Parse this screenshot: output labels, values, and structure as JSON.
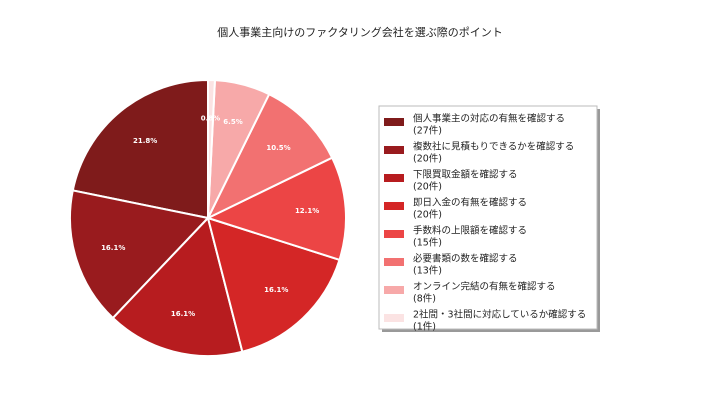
{
  "chart_data": {
    "type": "pie",
    "title": "個人事業主向けのファクタリング会社を選ぶ際のポイント",
    "categories": [
      "個人事業主の対応の有無を確認する",
      "複数社に見積もりできるかを確認する",
      "下限買取金額を確認する",
      "即日入金の有無を確認する",
      "手数料の上限額を確認する",
      "必要書類の数を確認する",
      "オンライン完結の有無を確認する",
      "2社間・3社間に対応しているか確認する"
    ],
    "legend_counts": [
      "(27件)",
      "(20件)",
      "(20件)",
      "(20件)",
      "(15件)",
      "(13件)",
      "(8件)",
      "(1件)"
    ],
    "values": [
      21.8,
      16.1,
      16.1,
      16.1,
      12.1,
      10.5,
      6.5,
      0.8
    ],
    "value_labels": [
      "21.8%",
      "16.1%",
      "16.1%",
      "16.1%",
      "12.1%",
      "10.5%",
      "6.5%",
      "0.8%"
    ],
    "colors": [
      "#7f1b1b",
      "#991b1e",
      "#b71c1f",
      "#d42626",
      "#ec4545",
      "#f27171",
      "#f7a9a9",
      "#fbe3e3"
    ],
    "start_angle": 90,
    "direction": "counterclockwise",
    "legend": "right"
  }
}
